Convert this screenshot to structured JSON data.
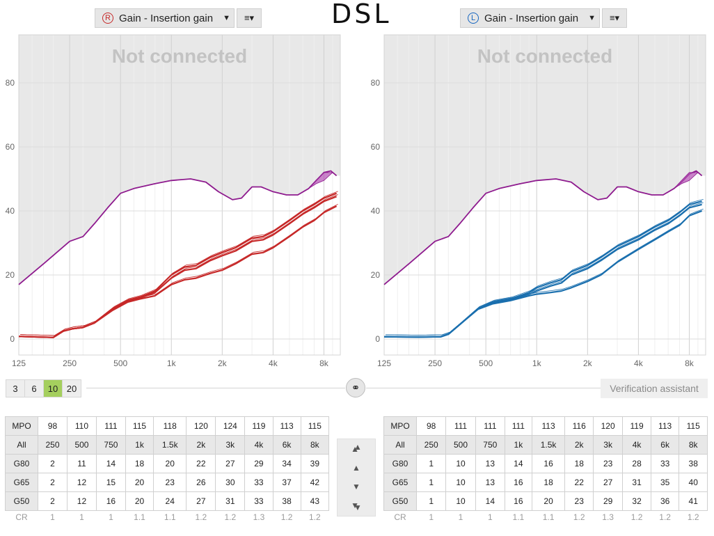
{
  "left": {
    "ear": "R",
    "dropdown_label": "Gain - Insertion gain",
    "status": "Not connected",
    "color": "#c62828"
  },
  "right": {
    "ear": "L",
    "dropdown_label": "Gain - Insertion gain",
    "status": "Not connected",
    "color": "#1a6fae"
  },
  "handwritten_label": "DSL",
  "icons": {
    "menu": "menu-icon",
    "link": "link-icon",
    "arrows": [
      "double-up-arrow-icon",
      "up-arrow-icon",
      "down-arrow-icon",
      "double-down-arrow-icon"
    ]
  },
  "axis": {
    "y_ticks": [
      "0",
      "20",
      "40",
      "60",
      "80"
    ],
    "x_ticks": [
      "125",
      "250",
      "500",
      "1k",
      "2k",
      "4k",
      "8k"
    ]
  },
  "step_buttons": [
    "3",
    "6",
    "10",
    "20"
  ],
  "selected_step": "10",
  "verification_label": "Verification assistant",
  "left_table": {
    "mpo_label": "MPO",
    "mpo": [
      "98",
      "110",
      "111",
      "115",
      "118",
      "120",
      "124",
      "119",
      "113",
      "115"
    ],
    "all_label": "All",
    "freqs": [
      "250",
      "500",
      "750",
      "1k",
      "1.5k",
      "2k",
      "3k",
      "4k",
      "6k",
      "8k"
    ],
    "rows": [
      {
        "label": "G80",
        "values": [
          "2",
          "11",
          "14",
          "18",
          "20",
          "22",
          "27",
          "29",
          "34",
          "39"
        ]
      },
      {
        "label": "G65",
        "values": [
          "2",
          "12",
          "15",
          "20",
          "23",
          "26",
          "30",
          "33",
          "37",
          "42"
        ]
      },
      {
        "label": "G50",
        "values": [
          "2",
          "12",
          "16",
          "20",
          "24",
          "27",
          "31",
          "33",
          "38",
          "43"
        ]
      }
    ],
    "cr_label": "CR",
    "cr": [
      "1",
      "1",
      "1",
      "1.1",
      "1.1",
      "1.2",
      "1.2",
      "1.3",
      "1.2",
      "1.2"
    ]
  },
  "right_table": {
    "mpo_label": "MPO",
    "mpo": [
      "98",
      "111",
      "111",
      "111",
      "113",
      "116",
      "120",
      "119",
      "113",
      "115"
    ],
    "all_label": "All",
    "freqs": [
      "250",
      "500",
      "750",
      "1k",
      "1.5k",
      "2k",
      "3k",
      "4k",
      "6k",
      "8k"
    ],
    "rows": [
      {
        "label": "G80",
        "values": [
          "1",
          "10",
          "13",
          "14",
          "16",
          "18",
          "23",
          "28",
          "33",
          "38"
        ]
      },
      {
        "label": "G65",
        "values": [
          "1",
          "10",
          "13",
          "16",
          "18",
          "22",
          "27",
          "31",
          "35",
          "40"
        ]
      },
      {
        "label": "G50",
        "values": [
          "1",
          "10",
          "14",
          "16",
          "20",
          "23",
          "29",
          "32",
          "36",
          "41"
        ]
      }
    ],
    "cr_label": "CR",
    "cr": [
      "1",
      "1",
      "1",
      "1.1",
      "1.1",
      "1.2",
      "1.3",
      "1.2",
      "1.2",
      "1.2"
    ]
  },
  "chart_data": [
    {
      "type": "line",
      "ear": "R",
      "x_scale": "log",
      "xlim": [
        125,
        10000
      ],
      "ylim": [
        -5,
        95
      ],
      "grid": true,
      "series": [
        {
          "role": "mpo",
          "color": "#8e1a8e",
          "points": [
            [
              125,
              17
            ],
            [
              180,
              24
            ],
            [
              250,
              30.5
            ],
            [
              300,
              32
            ],
            [
              350,
              36
            ],
            [
              420,
              41
            ],
            [
              500,
              45.5
            ],
            [
              600,
              47
            ],
            [
              800,
              48.5
            ],
            [
              1000,
              49.5
            ],
            [
              1300,
              50
            ],
            [
              1600,
              49
            ],
            [
              1900,
              46
            ],
            [
              2300,
              43.5
            ],
            [
              2600,
              44
            ],
            [
              3000,
              47.5
            ],
            [
              3400,
              47.5
            ],
            [
              4000,
              46
            ],
            [
              4800,
              45
            ],
            [
              5600,
              45
            ],
            [
              6500,
              47
            ],
            [
              7200,
              49.5
            ],
            [
              8000,
              52
            ],
            [
              8800,
              52.5
            ],
            [
              9500,
              51
            ]
          ]
        },
        {
          "role": "G50",
          "color": "#c62828",
          "points": [
            [
              125,
              0.8
            ],
            [
              200,
              0.5
            ],
            [
              230,
              2.5
            ],
            [
              260,
              3.2
            ],
            [
              300,
              3.6
            ],
            [
              350,
              5
            ],
            [
              450,
              9.5
            ],
            [
              550,
              12
            ],
            [
              650,
              13
            ],
            [
              800,
              15
            ],
            [
              1000,
              20
            ],
            [
              1200,
              22.5
            ],
            [
              1400,
              23
            ],
            [
              1700,
              25.5
            ],
            [
              2000,
              27
            ],
            [
              2400,
              28.5
            ],
            [
              3000,
              31.5
            ],
            [
              3500,
              32
            ],
            [
              4000,
              33.5
            ],
            [
              5000,
              37
            ],
            [
              6000,
              40
            ],
            [
              7000,
              42
            ],
            [
              8000,
              44
            ],
            [
              9500,
              45.5
            ]
          ]
        },
        {
          "role": "G65",
          "color": "#c62828",
          "points": [
            [
              125,
              0.8
            ],
            [
              200,
              0.5
            ],
            [
              230,
              2.5
            ],
            [
              260,
              3.2
            ],
            [
              300,
              3.6
            ],
            [
              350,
              5
            ],
            [
              450,
              9.3
            ],
            [
              550,
              11.8
            ],
            [
              650,
              12.8
            ],
            [
              800,
              14.5
            ],
            [
              1000,
              19
            ],
            [
              1200,
              21.5
            ],
            [
              1400,
              22
            ],
            [
              1700,
              24.5
            ],
            [
              2000,
              26
            ],
            [
              2400,
              27.5
            ],
            [
              3000,
              30.5
            ],
            [
              3500,
              31
            ],
            [
              4000,
              32.5
            ],
            [
              5000,
              36
            ],
            [
              6000,
              39
            ],
            [
              7000,
              41
            ],
            [
              8000,
              43
            ],
            [
              9500,
              44.5
            ]
          ]
        },
        {
          "role": "G80",
          "color": "#c62828",
          "points": [
            [
              125,
              0.8
            ],
            [
              200,
              0.5
            ],
            [
              230,
              2.5
            ],
            [
              260,
              3.2
            ],
            [
              300,
              3.6
            ],
            [
              350,
              5
            ],
            [
              450,
              9
            ],
            [
              550,
              11.5
            ],
            [
              650,
              12.5
            ],
            [
              800,
              13.5
            ],
            [
              1000,
              17
            ],
            [
              1200,
              18.5
            ],
            [
              1400,
              19
            ],
            [
              1700,
              20.5
            ],
            [
              2000,
              21.5
            ],
            [
              2400,
              23.5
            ],
            [
              3000,
              26.5
            ],
            [
              3500,
              27
            ],
            [
              4000,
              28.5
            ],
            [
              5000,
              32
            ],
            [
              6000,
              35
            ],
            [
              7000,
              37
            ],
            [
              8000,
              39.5
            ],
            [
              9500,
              41.5
            ]
          ]
        }
      ]
    },
    {
      "type": "line",
      "ear": "L",
      "x_scale": "log",
      "xlim": [
        125,
        10000
      ],
      "ylim": [
        -5,
        95
      ],
      "grid": true,
      "series": [
        {
          "role": "mpo",
          "color": "#8e1a8e",
          "points": [
            [
              125,
              17
            ],
            [
              180,
              24
            ],
            [
              250,
              30.5
            ],
            [
              300,
              32
            ],
            [
              350,
              36
            ],
            [
              420,
              41
            ],
            [
              500,
              45.5
            ],
            [
              600,
              47
            ],
            [
              800,
              48.5
            ],
            [
              1000,
              49.5
            ],
            [
              1300,
              50
            ],
            [
              1600,
              49
            ],
            [
              1900,
              46
            ],
            [
              2300,
              43.5
            ],
            [
              2600,
              44
            ],
            [
              3000,
              47.5
            ],
            [
              3400,
              47.5
            ],
            [
              4000,
              46
            ],
            [
              4800,
              45
            ],
            [
              5600,
              45
            ],
            [
              6500,
              47
            ],
            [
              7200,
              49
            ],
            [
              8000,
              51.5
            ],
            [
              8800,
              52.5
            ],
            [
              9500,
              51
            ]
          ]
        },
        {
          "role": "G50",
          "color": "#1a6fae",
          "points": [
            [
              125,
              0.7
            ],
            [
              200,
              0.6
            ],
            [
              270,
              0.7
            ],
            [
              300,
              1.5
            ],
            [
              350,
              4.5
            ],
            [
              450,
              9.5
            ],
            [
              550,
              11.5
            ],
            [
              700,
              12.5
            ],
            [
              900,
              14.5
            ],
            [
              1000,
              16
            ],
            [
              1200,
              17.5
            ],
            [
              1400,
              18.5
            ],
            [
              1600,
              21
            ],
            [
              2000,
              23
            ],
            [
              2400,
              25.5
            ],
            [
              3000,
              29
            ],
            [
              4000,
              32
            ],
            [
              5000,
              35
            ],
            [
              6000,
              37
            ],
            [
              7000,
              39.5
            ],
            [
              8000,
              42
            ],
            [
              9500,
              43
            ]
          ]
        },
        {
          "role": "G65",
          "color": "#1a6fae",
          "points": [
            [
              125,
              0.7
            ],
            [
              200,
              0.6
            ],
            [
              270,
              0.7
            ],
            [
              300,
              1.5
            ],
            [
              350,
              4.5
            ],
            [
              450,
              9.5
            ],
            [
              550,
              11.3
            ],
            [
              700,
              12.3
            ],
            [
              900,
              14
            ],
            [
              1000,
              15
            ],
            [
              1200,
              16.5
            ],
            [
              1400,
              17.5
            ],
            [
              1600,
              20
            ],
            [
              2000,
              22
            ],
            [
              2400,
              24.5
            ],
            [
              3000,
              28
            ],
            [
              4000,
              31
            ],
            [
              5000,
              34
            ],
            [
              6000,
              36
            ],
            [
              7000,
              38.5
            ],
            [
              8000,
              41
            ],
            [
              9500,
              42
            ]
          ]
        },
        {
          "role": "G80",
          "color": "#1a6fae",
          "points": [
            [
              125,
              0.7
            ],
            [
              200,
              0.6
            ],
            [
              270,
              0.7
            ],
            [
              300,
              1.5
            ],
            [
              350,
              4.5
            ],
            [
              450,
              9.3
            ],
            [
              550,
              11
            ],
            [
              700,
              12
            ],
            [
              900,
              13.5
            ],
            [
              1000,
              14
            ],
            [
              1200,
              14.5
            ],
            [
              1400,
              15
            ],
            [
              1600,
              16
            ],
            [
              2000,
              18
            ],
            [
              2400,
              20
            ],
            [
              3000,
              24
            ],
            [
              4000,
              28
            ],
            [
              5000,
              31
            ],
            [
              6000,
              33.5
            ],
            [
              7000,
              35.5
            ],
            [
              8000,
              38.5
            ],
            [
              9500,
              40
            ]
          ]
        }
      ]
    }
  ]
}
